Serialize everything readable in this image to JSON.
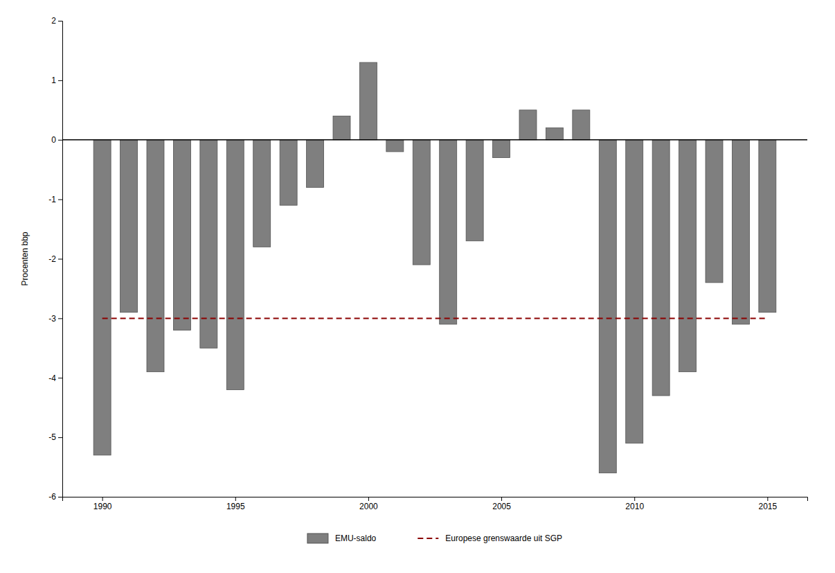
{
  "chart_data": {
    "type": "bar",
    "x": [
      1990,
      1991,
      1992,
      1993,
      1994,
      1995,
      1996,
      1997,
      1998,
      1999,
      2000,
      2001,
      2002,
      2003,
      2004,
      2005,
      2006,
      2007,
      2008,
      2009,
      2010,
      2011,
      2012,
      2013,
      2014,
      2015
    ],
    "series": [
      {
        "name": "EMU-saldo",
        "type": "bar",
        "color": "#7f7f7f",
        "values": [
          -5.3,
          -2.9,
          -3.9,
          -3.2,
          -3.5,
          -4.2,
          -1.8,
          -1.1,
          -0.8,
          0.4,
          1.3,
          -0.2,
          -2.1,
          -3.1,
          -1.7,
          -0.3,
          0.5,
          0.2,
          0.5,
          -5.6,
          -5.1,
          -4.3,
          -3.9,
          -2.4,
          -3.1,
          -2.9
        ]
      },
      {
        "name": "Europese grenswaarde uit SGP",
        "type": "line",
        "color": "#8b0000",
        "line_style": "dashed",
        "values": [
          -3.0,
          -3.0,
          -3.0,
          -3.0,
          -3.0,
          -3.0,
          -3.0,
          -3.0,
          -3.0,
          -3.0,
          -3.0,
          -3.0,
          -3.0,
          -3.0,
          -3.0,
          -3.0,
          -3.0,
          -3.0,
          -3.0,
          -3.0,
          -3.0,
          -3.0,
          -3.0,
          -3.0,
          -3.0,
          -3.0
        ]
      }
    ],
    "y_label": "Procenten bbp",
    "xlim": [
      1988.5,
      2016.5
    ],
    "xticks": [
      1990,
      1995,
      2000,
      2005,
      2010,
      2015
    ],
    "ylim": [
      -6,
      2
    ],
    "yticks": [
      -6,
      -5,
      -4,
      -3,
      -2,
      -1,
      0,
      1,
      2
    ],
    "grid": false,
    "legend": "bottom"
  }
}
